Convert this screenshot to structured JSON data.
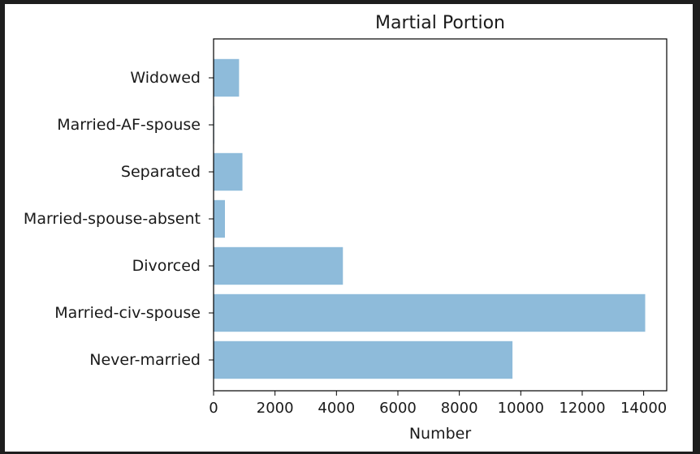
{
  "chart_data": {
    "type": "bar",
    "orientation": "horizontal",
    "title": "Martial Portion",
    "xlabel": "Number",
    "ylabel": "",
    "categories": [
      "Never-married",
      "Married-civ-spouse",
      "Divorced",
      "Married-spouse-absent",
      "Separated",
      "Married-AF-spouse",
      "Widowed"
    ],
    "values": [
      9730,
      14050,
      4210,
      370,
      940,
      20,
      830
    ],
    "xlim": [
      0,
      14750
    ],
    "xticks": [
      0,
      2000,
      4000,
      6000,
      8000,
      10000,
      12000,
      14000
    ],
    "grid": false,
    "legend": "none",
    "bar_color": "#8ebbda",
    "bar_alpha": 0.5
  }
}
